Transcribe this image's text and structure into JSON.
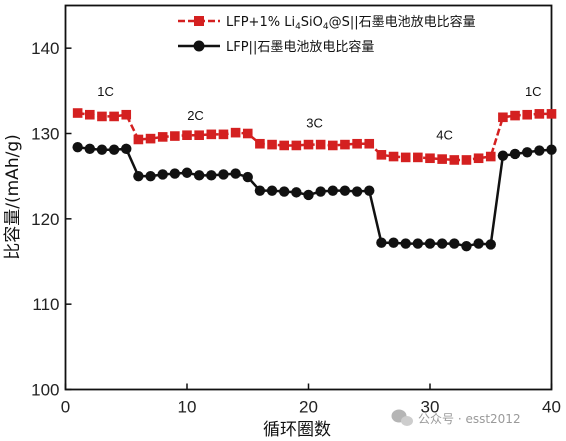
{
  "chart_data": {
    "type": "line",
    "xlabel": "循环圈数",
    "ylabel": "比容量/(mAh/g)",
    "xlim": [
      0,
      40
    ],
    "ylim": [
      100,
      145
    ],
    "xticks": [
      0,
      10,
      20,
      30,
      40
    ],
    "yticks": [
      100,
      110,
      120,
      130,
      140
    ],
    "grid": false,
    "legend_position": "top-right",
    "series": [
      {
        "name": "LFP+1% Li4SiO4@S||石墨电池放电比容量",
        "legend_main": "LFP+1% Li",
        "legend_sub1": "4",
        "legend_mid": "SiO",
        "legend_sub2": "4",
        "legend_tail": "@S||石墨电池放电比容量",
        "color": "#d42020",
        "marker": "square",
        "x": [
          1,
          2,
          3,
          4,
          5,
          6,
          7,
          8,
          9,
          10,
          11,
          12,
          13,
          14,
          15,
          16,
          17,
          18,
          19,
          20,
          21,
          22,
          23,
          24,
          25,
          26,
          27,
          28,
          29,
          30,
          31,
          32,
          33,
          34,
          35,
          36,
          37,
          38,
          39,
          40
        ],
        "y": [
          132.4,
          132.2,
          132.0,
          132.0,
          132.2,
          129.3,
          129.4,
          129.6,
          129.7,
          129.8,
          129.8,
          129.9,
          129.9,
          130.1,
          130.0,
          128.8,
          128.7,
          128.6,
          128.6,
          128.7,
          128.7,
          128.6,
          128.7,
          128.8,
          128.8,
          127.5,
          127.3,
          127.2,
          127.2,
          127.1,
          127.0,
          126.9,
          126.9,
          127.1,
          127.3,
          131.9,
          132.1,
          132.2,
          132.3,
          132.3
        ]
      },
      {
        "name": "LFP||石墨电池放电比容量",
        "legend_main": "LFP||石墨电池放电比容量",
        "color": "#111111",
        "marker": "circle",
        "x": [
          1,
          2,
          3,
          4,
          5,
          6,
          7,
          8,
          9,
          10,
          11,
          12,
          13,
          14,
          15,
          16,
          17,
          18,
          19,
          20,
          21,
          22,
          23,
          24,
          25,
          26,
          27,
          28,
          29,
          30,
          31,
          32,
          33,
          34,
          35,
          36,
          37,
          38,
          39,
          40
        ],
        "y": [
          128.4,
          128.2,
          128.1,
          128.1,
          128.2,
          125.0,
          125.0,
          125.2,
          125.3,
          125.4,
          125.1,
          125.1,
          125.2,
          125.3,
          124.9,
          123.3,
          123.3,
          123.2,
          123.1,
          122.8,
          123.2,
          123.3,
          123.3,
          123.2,
          123.3,
          117.2,
          117.2,
          117.1,
          117.1,
          117.1,
          117.1,
          117.1,
          116.8,
          117.1,
          117.0,
          127.4,
          127.6,
          127.8,
          128.0,
          128.1
        ]
      }
    ],
    "annotations": [
      {
        "text": "1C",
        "x": 3.3,
        "y": 134.4
      },
      {
        "text": "2C",
        "x": 10.7,
        "y": 131.6
      },
      {
        "text": "3C",
        "x": 20.5,
        "y": 130.7
      },
      {
        "text": "4C",
        "x": 31.2,
        "y": 129.3
      },
      {
        "text": "1C",
        "x": 38.5,
        "y": 134.4
      }
    ]
  },
  "watermark": {
    "icon": "wechat-icon",
    "text": "公众号 · esst2012"
  }
}
